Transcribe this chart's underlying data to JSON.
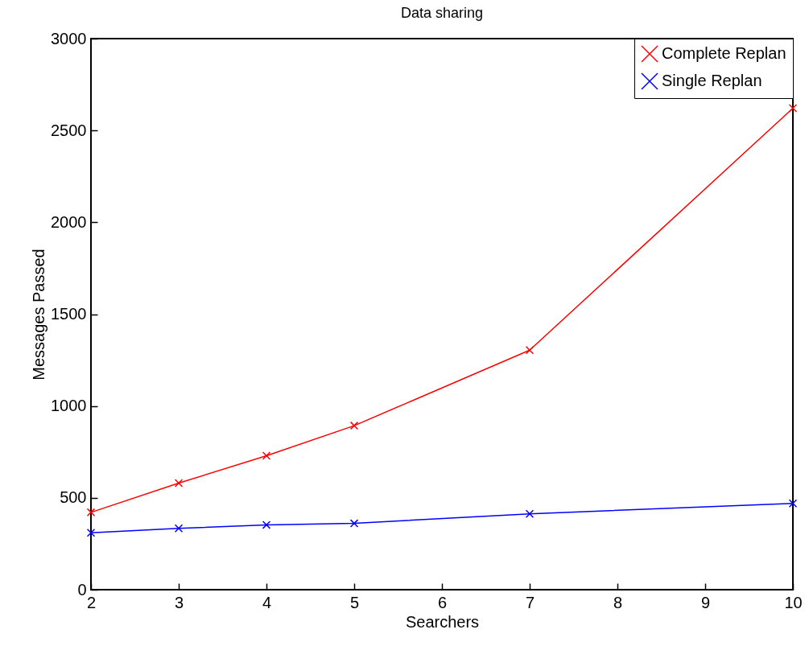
{
  "chart_data": {
    "type": "line",
    "title": "Data sharing",
    "xlabel": "Searchers",
    "ylabel": "Messages Passed",
    "x": [
      2,
      3,
      4,
      5,
      7,
      10
    ],
    "series": [
      {
        "name": "Complete Replan",
        "color": "#ff0000",
        "values": [
          421,
          580,
          729,
          893,
          1304,
          2621
        ]
      },
      {
        "name": "Single Replan",
        "color": "#0000ff",
        "values": [
          310,
          334,
          353,
          361,
          413,
          470
        ]
      }
    ],
    "xlim": [
      2,
      10
    ],
    "xticks": [
      2,
      3,
      4,
      5,
      6,
      7,
      8,
      9,
      10
    ],
    "ylim": [
      0,
      3000
    ],
    "yticks": [
      0,
      500,
      1000,
      1500,
      2000,
      2500,
      3000
    ],
    "grid": false,
    "legend": "top right",
    "marker": "cross",
    "line_style": "solid"
  }
}
